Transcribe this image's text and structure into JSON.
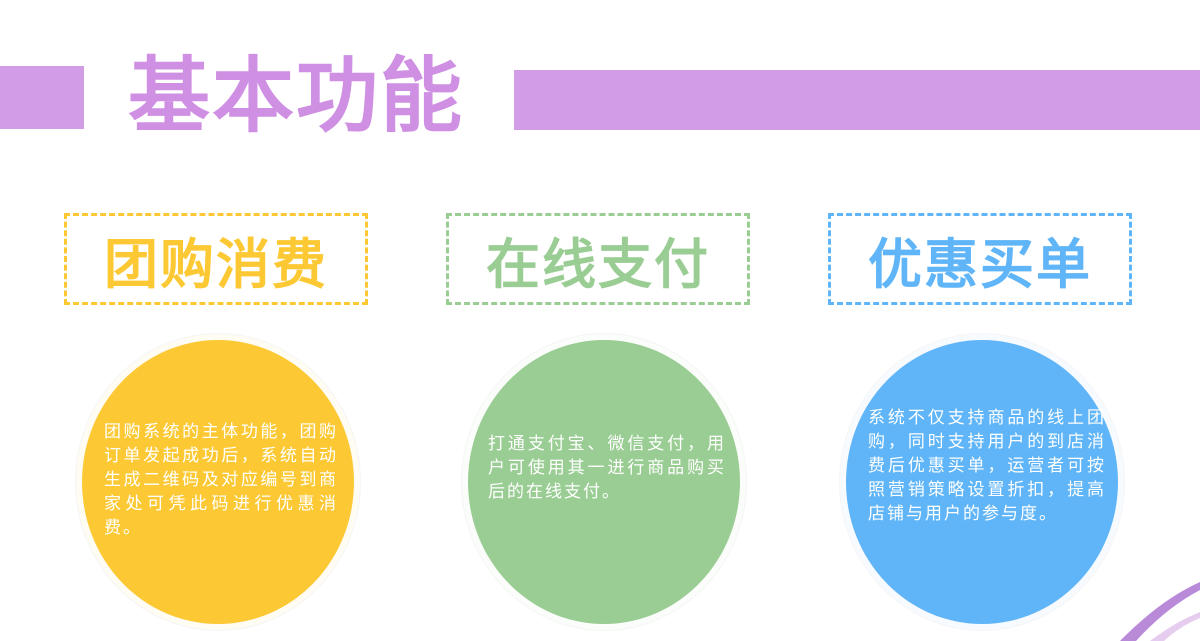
{
  "header": {
    "title": "基本功能"
  },
  "features": [
    {
      "title": "团购消费",
      "description": "团购系统的主体功能，团购订单发起成功后，系统自动生成二维码及对应编号到商家处可凭此码进行优惠消费。"
    },
    {
      "title": "在线支付",
      "description": "打通支付宝、微信支付，用户可使用其一进行商品购买后的在线支付。"
    },
    {
      "title": "优惠买单",
      "description": "系统不仅支持商品的线上团购，同时支持用户的到店消费后优惠买单，运营者可按照营销策略设置折扣，提高店铺与用户的参与度。"
    }
  ],
  "colors": {
    "header_accent": "#d39ce6",
    "title_color": "#cf8fe3",
    "feature_1": "#fcc934",
    "feature_2": "#9acd93",
    "feature_3": "#5fb5f7"
  }
}
